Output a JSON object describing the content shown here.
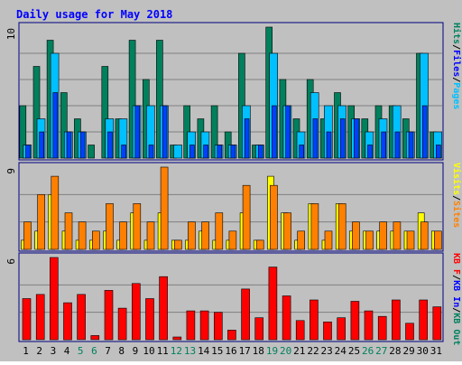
{
  "chart_data": {
    "title": "Daily usage for May 2018",
    "type": "bar",
    "categories": [
      "1",
      "2",
      "3",
      "4",
      "5",
      "6",
      "7",
      "8",
      "9",
      "10",
      "11",
      "12",
      "13",
      "14",
      "15",
      "16",
      "17",
      "18",
      "19",
      "20",
      "21",
      "22",
      "23",
      "24",
      "25",
      "26",
      "27",
      "28",
      "29",
      "30",
      "31"
    ],
    "weekend_days": [
      "5",
      "6",
      "12",
      "13",
      "19",
      "20",
      "26",
      "27"
    ],
    "colors": {
      "background": "#c0c0c0",
      "frame": "#000080",
      "title": "#0000ff",
      "hits": "#00805c",
      "files": "#00c0ff",
      "pages": "#0040ff",
      "visits": "#ffff00",
      "sites": "#ff8000",
      "kb_in": "#0000ff",
      "kb_out": "#00805c",
      "kb_f": "#ff0000",
      "weekday_label": "#000000",
      "weekend_label": "#00805c"
    },
    "panels": [
      {
        "max_label": "10",
        "ymax": 10,
        "legend": [
          {
            "label": "Hits",
            "color": "#00805c"
          },
          {
            "label": "Files",
            "color": "#0000ff"
          },
          {
            "label": "Pages",
            "color": "#00c0ff"
          }
        ],
        "series": [
          {
            "name": "Hits",
            "values": [
              4,
              7,
              9,
              5,
              3,
              1,
              7,
              3,
              9,
              6,
              9,
              1,
              4,
              3,
              4,
              2,
              8,
              1,
              10,
              6,
              3,
              6,
              3,
              5,
              4,
              3,
              4,
              4,
              3,
              8,
              2
            ]
          },
          {
            "name": "Files",
            "values": [
              1,
              3,
              8,
              2,
              2,
              0,
              3,
              3,
              4,
              4,
              4,
              1,
              2,
              2,
              1,
              1,
              4,
              1,
              8,
              4,
              2,
              5,
              4,
              4,
              3,
              2,
              3,
              4,
              2,
              8,
              2
            ]
          },
          {
            "name": "Pages",
            "values": [
              1,
              2,
              5,
              2,
              2,
              0,
              2,
              1,
              4,
              1,
              4,
              0,
              1,
              1,
              1,
              1,
              3,
              1,
              4,
              4,
              1,
              3,
              2,
              3,
              3,
              1,
              2,
              2,
              2,
              4,
              1
            ]
          }
        ]
      },
      {
        "max_label": "9",
        "ymax": 9,
        "legend": [
          {
            "label": "Visits",
            "color": "#ffff00"
          },
          {
            "label": "Sites",
            "color": "#ff8000"
          }
        ],
        "series": [
          {
            "name": "Visits",
            "values": [
              1,
              2,
              6,
              2,
              1,
              1,
              2,
              1,
              4,
              1,
              4,
              1,
              1,
              2,
              1,
              1,
              4,
              1,
              8,
              4,
              1,
              5,
              1,
              5,
              2,
              2,
              2,
              2,
              2,
              4,
              2
            ]
          },
          {
            "name": "Sites",
            "values": [
              3,
              6,
              8,
              4,
              3,
              2,
              5,
              3,
              5,
              3,
              9,
              1,
              3,
              3,
              4,
              2,
              7,
              1,
              7,
              4,
              2,
              5,
              2,
              5,
              3,
              2,
              3,
              3,
              2,
              3,
              2
            ]
          }
        ]
      },
      {
        "max_label": "6",
        "ymax": 6,
        "legend": [
          {
            "label": "KB F",
            "color": "#ff0000"
          },
          {
            "label": "KB In",
            "color": "#0000ff"
          },
          {
            "label": "KB Out",
            "color": "#00805c"
          }
        ],
        "series": [
          {
            "name": "KB F",
            "values": [
              3.0,
              3.3,
              6.0,
              2.7,
              3.3,
              0.3,
              3.6,
              2.3,
              4.1,
              3.0,
              4.6,
              0.2,
              2.1,
              2.1,
              2.0,
              0.7,
              3.7,
              1.6,
              5.3,
              3.2,
              1.4,
              2.9,
              1.3,
              1.6,
              2.8,
              2.1,
              1.7,
              2.9,
              1.2,
              2.9,
              2.4
            ]
          }
        ]
      }
    ]
  }
}
